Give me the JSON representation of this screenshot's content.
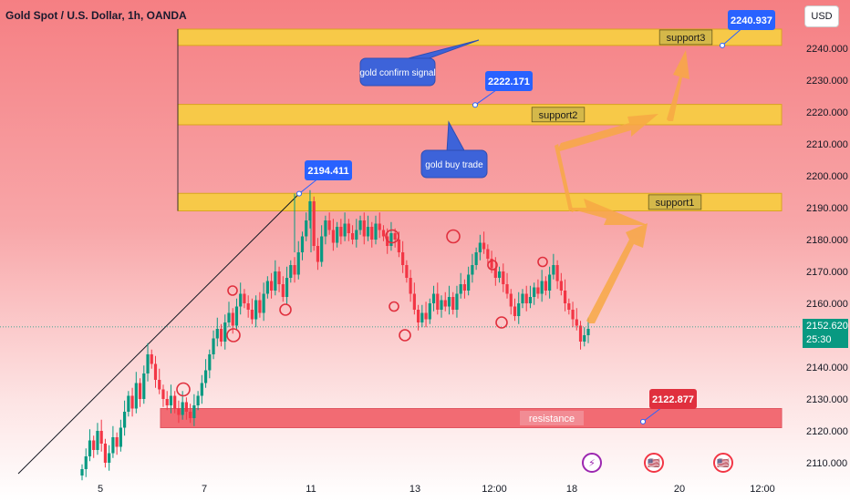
{
  "header": {
    "title": "Gold Spot / U.S. Dollar, 1h, OANDA",
    "currency_button": "USD"
  },
  "price_badge": {
    "price": "2152.620",
    "countdown": "25:30"
  },
  "colors": {
    "up": "#089981",
    "down": "#f23645",
    "zone": "#f7c948",
    "resistance_zone": "#f26b73",
    "callout": "#2962ff",
    "callout_dark": "#3d5afe",
    "arrow": "#f7a844",
    "trendline": "#131722"
  },
  "chart_data": {
    "type": "candlestick",
    "y_axis": {
      "ticks": [
        "2240.000",
        "2230.000",
        "2220.000",
        "2210.000",
        "2200.000",
        "2190.000",
        "2180.000",
        "2170.000",
        "2160.000",
        "2150.000",
        "2140.000",
        "2130.000",
        "2120.000",
        "2110.000"
      ],
      "range": [
        2107,
        2250
      ]
    },
    "x_axis": {
      "ticks": [
        "5",
        "7",
        "11",
        "13",
        "12:00",
        "18",
        "20",
        "12:00"
      ]
    },
    "zones": [
      {
        "label": "support3",
        "from": 2240.9,
        "to": 2246.0
      },
      {
        "label": "support2",
        "from": 2216.0,
        "to": 2222.4
      },
      {
        "label": "support1",
        "from": 2189.0,
        "to": 2194.5
      },
      {
        "label": "resistance",
        "from": 2121.0,
        "to": 2127.0
      }
    ],
    "price_callouts": [
      "2240.937",
      "2222.171",
      "2194.411",
      "2122.877"
    ],
    "annotations": [
      "gold confirm signal",
      "gold buy  trade"
    ],
    "candles_close": [
      2108,
      2112,
      2117,
      2114,
      2120,
      2116,
      2110,
      2113,
      2118,
      2115,
      2121,
      2126,
      2131,
      2127,
      2135,
      2130,
      2138,
      2144,
      2141,
      2136,
      2133,
      2130,
      2128,
      2131,
      2127,
      2125,
      2129,
      2126,
      2124,
      2128,
      2131,
      2135,
      2139,
      2144,
      2149,
      2152,
      2148,
      2154,
      2157,
      2153,
      2159,
      2163,
      2160,
      2158,
      2155,
      2161,
      2157,
      2163,
      2167,
      2164,
      2170,
      2166,
      2162,
      2168,
      2172,
      2169,
      2176,
      2181,
      2186,
      2192,
      2178,
      2173,
      2181,
      2186,
      2183,
      2179,
      2184,
      2181,
      2185,
      2182,
      2180,
      2183,
      2186,
      2181,
      2184,
      2180,
      2185,
      2183,
      2181,
      2178,
      2182,
      2180,
      2176,
      2172,
      2168,
      2163,
      2158,
      2154,
      2157,
      2155,
      2160,
      2163,
      2158,
      2161,
      2159,
      2162,
      2158,
      2163,
      2166,
      2164,
      2169,
      2172,
      2176,
      2179,
      2177,
      2174,
      2171,
      2168,
      2170,
      2166,
      2163,
      2159,
      2156,
      2160,
      2163,
      2160,
      2162,
      2165,
      2163,
      2167,
      2164,
      2169,
      2172,
      2167,
      2164,
      2160,
      2158,
      2155,
      2153,
      2148,
      2150,
      2152
    ]
  },
  "event_icons": [
    "⚡",
    "🇺🇸",
    "🇺🇸"
  ]
}
